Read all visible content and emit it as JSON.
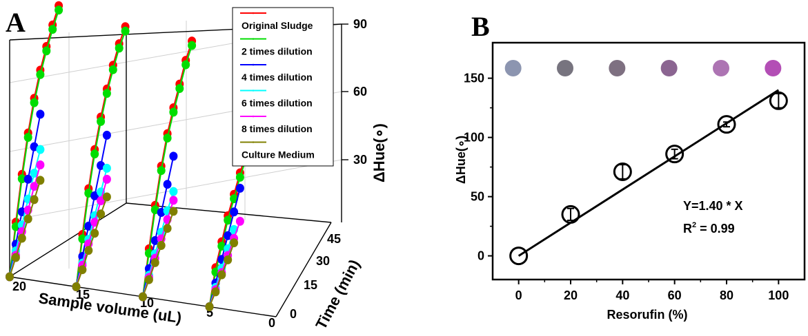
{
  "panels": {
    "a_letter": "A",
    "b_letter": "B"
  },
  "chart_data": [
    {
      "panel": "A",
      "type": "line",
      "xlabel": "Time (min)",
      "ylabel": "Sample volume (uL)",
      "zlabel": "ΔHue(∘)",
      "x_ticks": [
        "0",
        "15",
        "30",
        "45"
      ],
      "y_ticks": [
        "0",
        "5",
        "10",
        "15",
        "20"
      ],
      "z_ticks": [
        "30",
        "60",
        "90"
      ],
      "xlim": [
        0,
        45
      ],
      "ylim": [
        0,
        20
      ],
      "zlim": [
        0,
        90
      ],
      "sample_volumes": [
        5,
        10,
        15,
        20
      ],
      "time_points": [
        0,
        5,
        10,
        15,
        20,
        25,
        30,
        35,
        40,
        45
      ],
      "legend_position": "top-right",
      "series": [
        {
          "name": "Original Sludge",
          "color": "#ff0000",
          "lines": [
            {
              "volume": 5,
              "hue": [
                0,
                13,
                20,
                27,
                32,
                37,
                41,
                44
              ]
            },
            {
              "volume": 10,
              "hue": [
                0,
                17,
                32,
                45,
                55,
                62,
                68,
                74,
                78
              ]
            },
            {
              "volume": 15,
              "hue": [
                0,
                19,
                35,
                48,
                58,
                66,
                72,
                77,
                80
              ]
            },
            {
              "volume": 20,
              "hue": [
                0,
                20,
                37,
                51,
                62,
                70,
                76,
                81,
                85
              ]
            }
          ]
        },
        {
          "name": "2 times dilution",
          "color": "#00dd00",
          "lines": [
            {
              "volume": 5,
              "hue": [
                0,
                11,
                18,
                25,
                30,
                35,
                39,
                42
              ]
            },
            {
              "volume": 10,
              "hue": [
                0,
                15,
                30,
                43,
                53,
                60,
                66,
                72,
                76
              ]
            },
            {
              "volume": 15,
              "hue": [
                0,
                17,
                33,
                46,
                56,
                64,
                70,
                75,
                78
              ]
            },
            {
              "volume": 20,
              "hue": [
                0,
                18,
                35,
                49,
                60,
                68,
                74,
                79,
                83
              ]
            }
          ]
        },
        {
          "name": "4 times dilution",
          "color": "#0000ff",
          "lines": [
            {
              "volume": 5,
              "hue": [
                0,
                6,
                12,
                18,
                24,
                30
              ]
            },
            {
              "volume": 10,
              "hue": [
                0,
                8,
                16,
                24,
                32,
                40
              ]
            },
            {
              "volume": 15,
              "hue": [
                0,
                9,
                18,
                27,
                36,
                45
              ]
            },
            {
              "volume": 20,
              "hue": [
                0,
                10,
                20,
                30,
                40,
                50
              ]
            }
          ]
        },
        {
          "name": "6 times dilution",
          "color": "#00ffff",
          "lines": [
            {
              "volume": 5,
              "hue": [
                0,
                4,
                8,
                12,
                16
              ]
            },
            {
              "volume": 10,
              "hue": [
                0,
                5,
                10,
                15,
                20,
                24
              ]
            },
            {
              "volume": 15,
              "hue": [
                0,
                6,
                12,
                18,
                24,
                30
              ]
            },
            {
              "volume": 20,
              "hue": [
                0,
                7,
                14,
                21,
                28,
                34
              ]
            }
          ]
        },
        {
          "name": "8 times dilution",
          "color": "#ff00ff",
          "lines": [
            {
              "volume": 5,
              "hue": [
                0,
                3,
                6,
                9,
                12,
                15
              ]
            },
            {
              "volume": 10,
              "hue": [
                0,
                4,
                8,
                12,
                16,
                20
              ]
            },
            {
              "volume": 15,
              "hue": [
                0,
                5,
                10,
                15,
                20,
                25
              ]
            },
            {
              "volume": 20,
              "hue": [
                0,
                5,
                11,
                16,
                22,
                27
              ]
            }
          ]
        },
        {
          "name": "Culture Medium",
          "color": "#808000",
          "lines": [
            {
              "volume": 5,
              "hue": [
                0,
                2,
                5,
                7,
                10
              ]
            },
            {
              "volume": 10,
              "hue": [
                0,
                3,
                6,
                9,
                12,
                15
              ]
            },
            {
              "volume": 15,
              "hue": [
                0,
                3,
                7,
                10,
                14,
                17
              ]
            },
            {
              "volume": 20,
              "hue": [
                0,
                4,
                8,
                12,
                16,
                20
              ]
            }
          ]
        }
      ]
    },
    {
      "panel": "B",
      "type": "scatter",
      "xlabel": "Resorufin (%)",
      "ylabel": "ΔHue(∘)",
      "x_ticks": [
        0,
        20,
        40,
        60,
        80,
        100
      ],
      "y_ticks": [
        0,
        50,
        100,
        150
      ],
      "xlim": [
        -10,
        110
      ],
      "ylim": [
        -20,
        180
      ],
      "points": [
        {
          "x": 0,
          "y": 0,
          "err": 0
        },
        {
          "x": 20,
          "y": 35,
          "err": 5
        },
        {
          "x": 40,
          "y": 71,
          "err": 6
        },
        {
          "x": 60,
          "y": 86,
          "err": 4
        },
        {
          "x": 80,
          "y": 111,
          "err": 2
        },
        {
          "x": 100,
          "y": 131,
          "err": 6
        }
      ],
      "fit": {
        "slope": 1.4,
        "x_range": [
          0,
          100
        ]
      },
      "equation": "Y=1.40 * X",
      "r2_prefix": "R",
      "r2_sup": "2",
      "r2_suffix": " = 0.99",
      "swatches": [
        {
          "x": 0,
          "color": "#8c95b0"
        },
        {
          "x": 20,
          "color": "#77747f"
        },
        {
          "x": 40,
          "color": "#7e7081"
        },
        {
          "x": 60,
          "color": "#8b6591"
        },
        {
          "x": 80,
          "color": "#ad74b3"
        },
        {
          "x": 100,
          "color": "#b34eb5"
        }
      ]
    }
  ]
}
